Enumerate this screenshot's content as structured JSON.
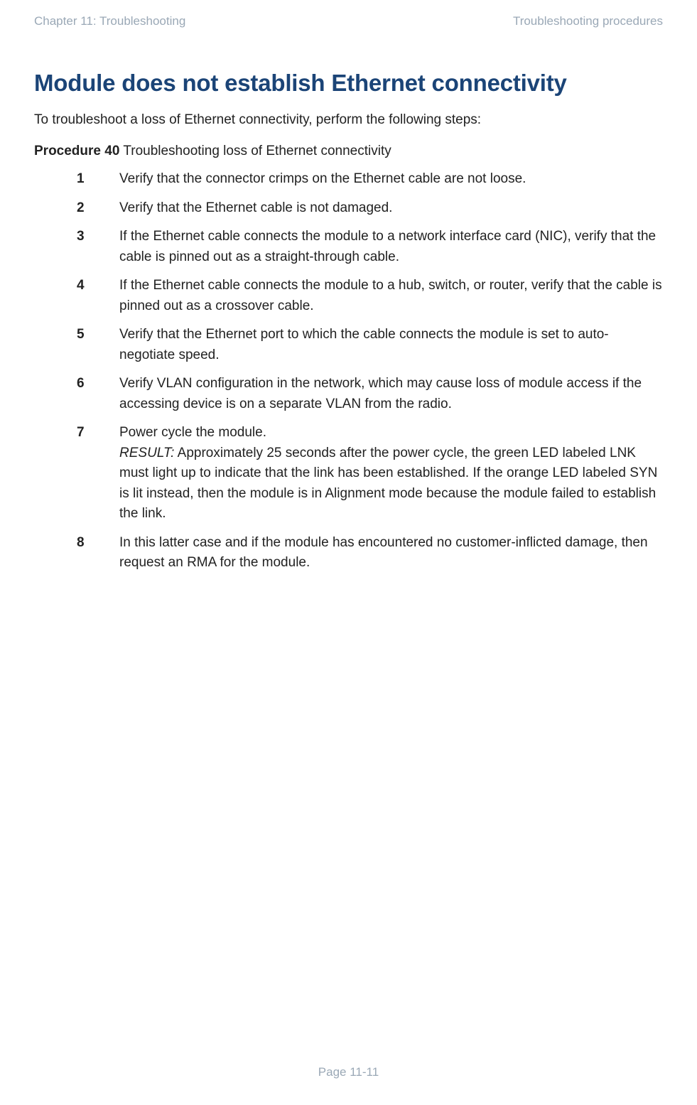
{
  "header": {
    "left": "Chapter 11:  Troubleshooting",
    "right": "Troubleshooting procedures",
    "color": "#9aa8b6",
    "fontsize": 17
  },
  "heading": {
    "text": "Module does not establish Ethernet connectivity",
    "color": "#1b4477",
    "fontsize": 33
  },
  "intro": "To troubleshoot a loss of Ethernet connectivity, perform the following steps:",
  "procedure": {
    "label": "Procedure 40",
    "title": " Troubleshooting loss of Ethernet connectivity"
  },
  "steps": [
    {
      "n": "1",
      "body": "Verify that the connector crimps on the Ethernet cable are not loose."
    },
    {
      "n": "2",
      "body": "Verify that the Ethernet cable is not damaged."
    },
    {
      "n": "3",
      "body": "If the Ethernet cable connects the module to a network interface card (NIC), verify that the cable is pinned out as a straight-through cable."
    },
    {
      "n": "4",
      "body": "If the Ethernet cable connects the module to a hub, switch, or router, verify that the cable is pinned out as a crossover cable."
    },
    {
      "n": "5",
      "body": "Verify that the Ethernet port to which the cable connects the module is set to auto-negotiate speed."
    },
    {
      "n": "6",
      "body": "Verify VLAN configuration in the network, which may cause loss of module access if the accessing device is on a separate VLAN from the radio."
    },
    {
      "n": "7",
      "body_pre": "Power cycle the module.",
      "result_label": "RESULT:",
      "result_body": " Approximately 25 seconds after the power cycle, the green LED labeled LNK must light up to indicate that the link has been established. If the orange LED labeled SYN is lit instead, then the module is in Alignment mode because the module failed to establish the link."
    },
    {
      "n": "8",
      "body": "In this latter case and if the module has encountered no customer-inflicted damage, then request an RMA for the module."
    }
  ],
  "footer": "Page 11-11",
  "body_text": {
    "color": "#222222",
    "fontsize": 19
  },
  "background_color": "#ffffff"
}
